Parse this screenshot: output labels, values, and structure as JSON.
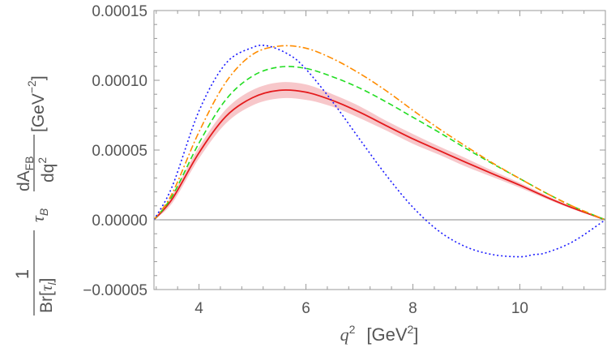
{
  "chart_data": {
    "type": "line",
    "xlim": [
      3.158,
      11.6
    ],
    "ylim": [
      -5e-05,
      0.00015
    ],
    "x_ticks": [
      4,
      6,
      8,
      10
    ],
    "x_tick_labels": [
      "4",
      "6",
      "8",
      "10"
    ],
    "y_ticks": [
      -5e-05,
      0,
      5e-05,
      0.0001,
      0.00015
    ],
    "y_tick_labels": [
      "−0.00005",
      "0.00000",
      "0.00005",
      "0.00010",
      "0.00015"
    ],
    "xlabel": {
      "var": "q",
      "sup": "2",
      "unit_open": "[GeV",
      "unit_sup": "2",
      "unit_close": "]"
    },
    "ylabel": {
      "one": "1",
      "br": "Br[",
      "tau": "τ",
      "tau_sub": "l",
      "br_close": "]",
      "tau_b": "τ",
      "tau_b_sub": "B",
      "numer": "dA",
      "numer_sub": "FB",
      "denom": "dq",
      "denom_sup": "2",
      "unit_open": "[GeV",
      "unit_sup": "−2",
      "unit_close": "]"
    },
    "zero_line": true,
    "series": [
      {
        "name": "band",
        "style": "band",
        "color": "#f4b4b8",
        "x": [
          3.158,
          3.5,
          4.0,
          4.5,
          5.0,
          5.5,
          6.0,
          6.5,
          7.0,
          7.5,
          8.0,
          8.5,
          9.0,
          9.5,
          10.0,
          10.5,
          11.0,
          11.6
        ],
        "upper": [
          0.0,
          1.8e-05,
          5.2e-05,
          7.9e-05,
          9.3e-05,
          9.85e-05,
          9.7e-05,
          9e-05,
          8.15e-05,
          7.1e-05,
          6.15e-05,
          5.25e-05,
          4.4e-05,
          3.5e-05,
          2.65e-05,
          1.75e-05,
          9e-06,
          0.0
        ],
        "lower": [
          0.0,
          1.2e-05,
          4.4e-05,
          6.9e-05,
          8.2e-05,
          8.7e-05,
          8.6e-05,
          8.1e-05,
          7.3e-05,
          6.4e-05,
          5.45e-05,
          4.65e-05,
          3.8e-05,
          3.05e-05,
          2.3e-05,
          1.5e-05,
          7.5e-06,
          0.0
        ]
      },
      {
        "name": "red-solid",
        "style": "solid",
        "color": "#e41a1c",
        "x": [
          3.158,
          3.5,
          4.0,
          4.5,
          5.0,
          5.5,
          6.0,
          6.5,
          7.0,
          7.5,
          8.0,
          8.5,
          9.0,
          9.5,
          10.0,
          10.5,
          11.0,
          11.6
        ],
        "y": [
          0.0,
          1.5e-05,
          4.8e-05,
          7.4e-05,
          8.75e-05,
          9.28e-05,
          9.15e-05,
          8.55e-05,
          7.72e-05,
          6.75e-05,
          5.8e-05,
          4.95e-05,
          4.1e-05,
          3.28e-05,
          2.48e-05,
          1.62e-05,
          8.3e-06,
          0.0
        ]
      },
      {
        "name": "green-dashed",
        "style": "dashed",
        "color": "#22dd22",
        "x": [
          3.158,
          3.5,
          4.0,
          4.5,
          5.0,
          5.5,
          6.0,
          6.5,
          7.0,
          7.5,
          8.0,
          8.5,
          9.0,
          9.5,
          10.0,
          10.5,
          11.0,
          11.6
        ],
        "y": [
          0.0,
          1.7e-05,
          5.5e-05,
          8.6e-05,
          0.000103,
          0.0001095,
          0.0001085,
          0.0001025,
          9.45e-05,
          8.45e-05,
          7.35e-05,
          6.25e-05,
          5.1e-05,
          4e-05,
          2.95e-05,
          1.9e-05,
          9.5e-06,
          0.0
        ]
      },
      {
        "name": "orange-dotdashed",
        "style": "dotdash",
        "color": "#ff8c00",
        "x": [
          3.158,
          3.5,
          4.0,
          4.5,
          5.0,
          5.5,
          6.0,
          6.5,
          7.0,
          7.5,
          8.0,
          8.5,
          9.0,
          9.5,
          10.0,
          10.5,
          11.0,
          11.6
        ],
        "y": [
          0.0,
          1.9e-05,
          6.3e-05,
          9.85e-05,
          0.0001185,
          0.0001245,
          0.000123,
          0.0001155,
          0.000105,
          9.25e-05,
          7.85e-05,
          6.5e-05,
          5.25e-05,
          4.05e-05,
          2.95e-05,
          1.9e-05,
          9.5e-06,
          0.0
        ]
      },
      {
        "name": "blue-dotted",
        "style": "dotted",
        "color": "#1a1aff",
        "x": [
          3.158,
          3.5,
          4.0,
          4.5,
          5.0,
          5.3,
          5.7,
          6.0,
          6.5,
          7.0,
          7.5,
          8.0,
          8.5,
          9.0,
          9.5,
          10.0,
          10.25,
          10.5,
          11.0,
          11.6
        ],
        "y": [
          0.0,
          2.4e-05,
          7.8e-05,
          0.000112,
          0.0001235,
          0.0001245,
          0.000118,
          0.000108,
          8.45e-05,
          5.8e-05,
          3.2e-05,
          9e-06,
          -8.5e-06,
          -1.95e-05,
          -2.5e-05,
          -2.65e-05,
          -2.5e-05,
          -2.35e-05,
          -1.55e-05,
          0.0
        ]
      }
    ]
  }
}
